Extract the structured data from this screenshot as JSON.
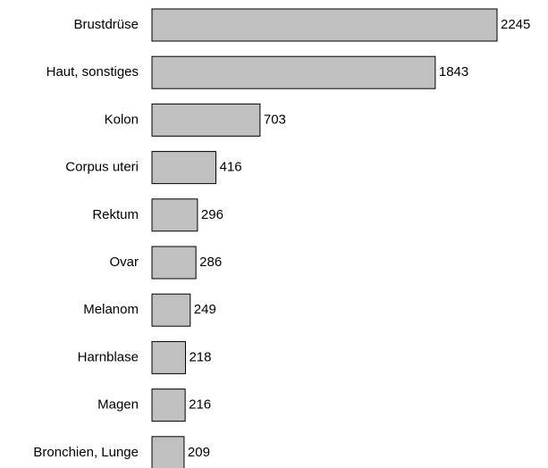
{
  "chart_data": {
    "type": "barh",
    "categories": [
      "Brustdrüse",
      "Haut, sonstiges",
      "Kolon",
      "Corpus uteri",
      "Rektum",
      "Ovar",
      "Melanom",
      "Harnblase",
      "Magen",
      "Bronchien, Lunge"
    ],
    "values": [
      2245,
      1843,
      703,
      416,
      296,
      286,
      249,
      218,
      216,
      209
    ],
    "color": "#c0c0c0"
  }
}
